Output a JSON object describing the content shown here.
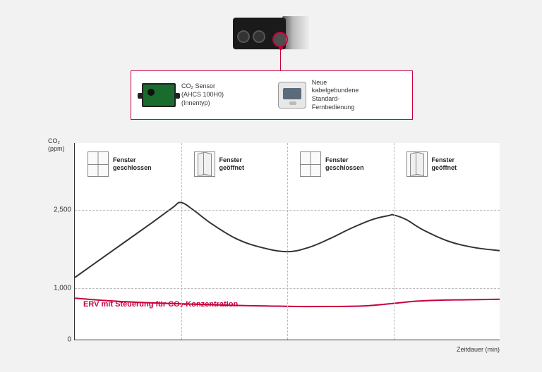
{
  "components": {
    "sensor": {
      "line1": "CO₂ Sensor",
      "line2": "(AHCS 100H0)",
      "line3": "(Innentyp)"
    },
    "remote": {
      "line1": "Neue",
      "line2": "kabelgebundene",
      "line3": "Standard-",
      "line4": "Fernbedienung"
    }
  },
  "chart": {
    "y_axis_title_l1": "CO₂",
    "y_axis_title_l2": "(ppm)",
    "x_axis_title": "Zeitdauer (min)",
    "y_ticks": [
      {
        "label": "0",
        "value": 0
      },
      {
        "label": "1,000",
        "value": 1000
      },
      {
        "label": "2,500",
        "value": 2500
      }
    ],
    "y_max": 3800,
    "vertical_divisions": 4,
    "windows": [
      {
        "state": "closed",
        "label_l1": "Fenster",
        "label_l2": "geschlossen"
      },
      {
        "state": "open",
        "label_l1": "Fenster",
        "label_l2": "geöffnet"
      },
      {
        "state": "closed",
        "label_l1": "Fenster",
        "label_l2": "geschlossen"
      },
      {
        "state": "open",
        "label_l1": "Fenster",
        "label_l2": "geöffnet"
      }
    ],
    "series": {
      "room": {
        "color": "#333333",
        "width": 2,
        "points": [
          [
            0,
            1200
          ],
          [
            6,
            1550
          ],
          [
            12,
            1900
          ],
          [
            18,
            2250
          ],
          [
            23,
            2550
          ],
          [
            25,
            2650
          ],
          [
            28,
            2500
          ],
          [
            32,
            2250
          ],
          [
            38,
            1950
          ],
          [
            44,
            1780
          ],
          [
            50,
            1700
          ],
          [
            55,
            1780
          ],
          [
            60,
            1950
          ],
          [
            65,
            2150
          ],
          [
            70,
            2320
          ],
          [
            74,
            2400
          ],
          [
            75,
            2410
          ],
          [
            78,
            2320
          ],
          [
            82,
            2120
          ],
          [
            88,
            1900
          ],
          [
            94,
            1780
          ],
          [
            100,
            1720
          ]
        ]
      },
      "erv": {
        "color": "#c8003c",
        "width": 2,
        "points": [
          [
            0,
            800
          ],
          [
            8,
            750
          ],
          [
            15,
            720
          ],
          [
            22,
            700
          ],
          [
            30,
            680
          ],
          [
            38,
            660
          ],
          [
            45,
            650
          ],
          [
            52,
            640
          ],
          [
            60,
            640
          ],
          [
            68,
            650
          ],
          [
            75,
            700
          ],
          [
            80,
            740
          ],
          [
            85,
            760
          ],
          [
            92,
            770
          ],
          [
            100,
            780
          ]
        ]
      }
    },
    "erv_label": {
      "text": "ERV mit Steuerung für CO₂-Konzentration",
      "color": "#c8003c"
    }
  }
}
